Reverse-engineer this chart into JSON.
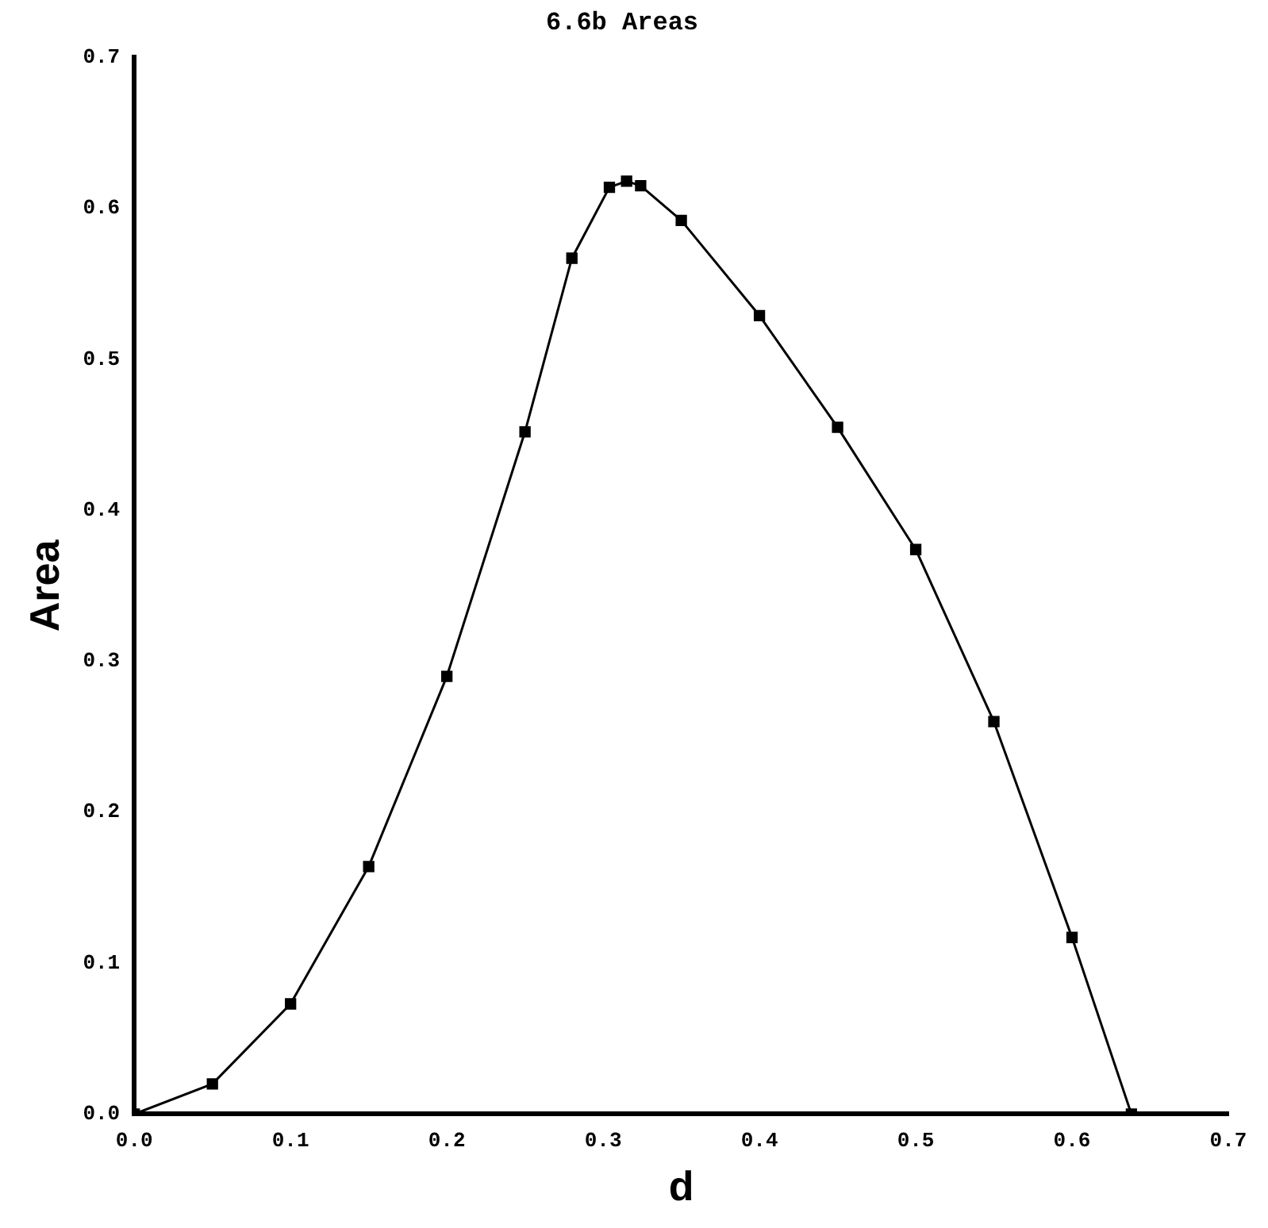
{
  "chart_data": {
    "type": "line",
    "title": "6.6b Areas",
    "xlabel": "d",
    "ylabel": "Area",
    "x": [
      0,
      0.05,
      0.1,
      0.15,
      0.2,
      0.25,
      0.28,
      0.304,
      0.315,
      0.324,
      0.35,
      0.4,
      0.45,
      0.5,
      0.55,
      0.6,
      0.638
    ],
    "series": [
      {
        "color": "#000000",
        "values": [
          0,
          0.02,
          0.073,
          0.164,
          0.29,
          0.452,
          0.567,
          0.614,
          0.618,
          0.615,
          0.592,
          0.529,
          0.455,
          0.374,
          0.26,
          0.117,
          0
        ]
      }
    ],
    "xlim": [
      0,
      0.7
    ],
    "xticks": [
      {
        "value": 0,
        "label": "0.0"
      },
      0.1,
      0.2,
      0.3,
      0.4,
      0.5,
      0.6,
      0.7
    ],
    "ylim": [
      0,
      0.7
    ],
    "yticks": [
      {
        "value": 0,
        "label": "0.0"
      },
      0.1,
      0.2,
      0.3,
      0.4,
      0.5,
      0.6,
      0.7
    ],
    "grid": false,
    "legend": false,
    "marker": "square",
    "line_style": "solid"
  }
}
